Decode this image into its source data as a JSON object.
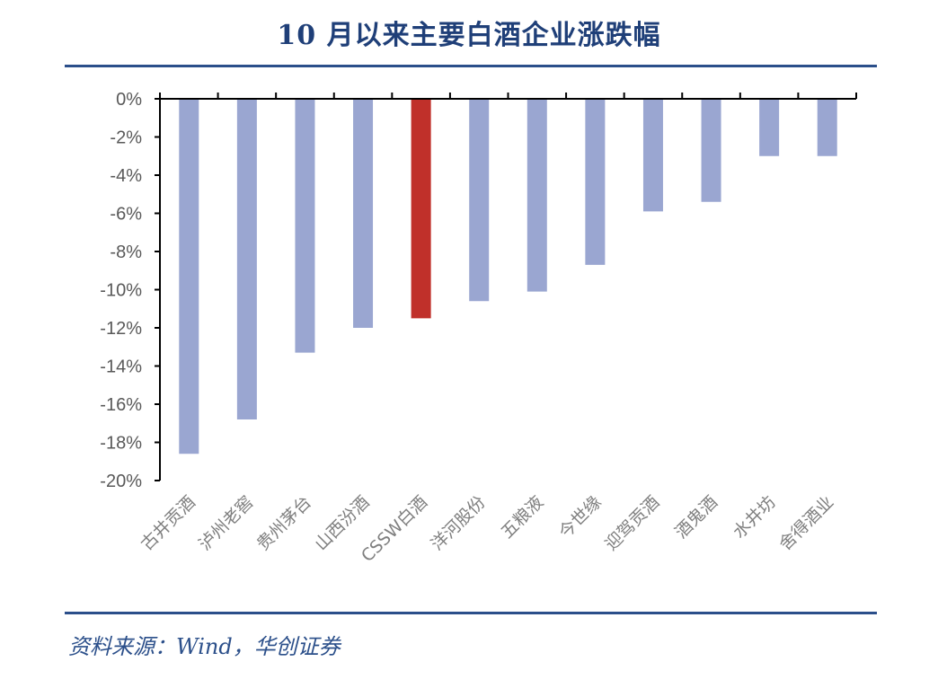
{
  "title": "10 月以来主要白酒企业涨跌幅",
  "source": "资料来源：Wind，华创证券",
  "colors": {
    "bar": "#9aa6d1",
    "highlight": "#c0302a",
    "axis": "#000000",
    "rule": "#2b4f8a",
    "title": "#1f3f78"
  },
  "chart_data": {
    "type": "bar",
    "categories": [
      "古井贡酒",
      "泸州老窖",
      "贵州茅台",
      "山西汾酒",
      "CSSW白酒",
      "洋河股份",
      "五粮液",
      "今世缘",
      "迎驾贡酒",
      "酒鬼酒",
      "水井坊",
      "舍得酒业"
    ],
    "values": [
      -18.6,
      -16.8,
      -13.3,
      -12.0,
      -11.5,
      -10.6,
      -10.1,
      -8.7,
      -5.9,
      -5.4,
      -3.0,
      -3.0
    ],
    "highlight_index": 4,
    "ylim": [
      -20,
      0
    ],
    "yticks": [
      "0%",
      "-2%",
      "-4%",
      "-6%",
      "-8%",
      "-10%",
      "-12%",
      "-14%",
      "-16%",
      "-18%",
      "-20%"
    ],
    "ytick_values": [
      0,
      -2,
      -4,
      -6,
      -8,
      -10,
      -12,
      -14,
      -16,
      -18,
      -20
    ],
    "xlabel": "",
    "ylabel": "",
    "grid": false,
    "legend": "none"
  }
}
